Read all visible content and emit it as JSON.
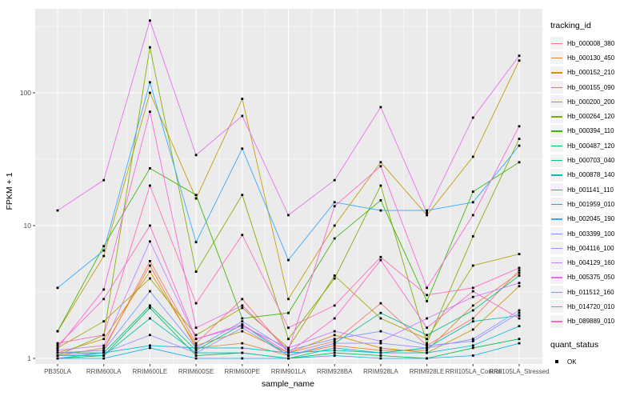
{
  "chart_data": {
    "type": "line",
    "title": "",
    "xlabel": "sample_name",
    "ylabel": "FPKM + 1",
    "y_scale": "log10",
    "y_ticks": [
      1,
      10,
      100
    ],
    "ylim": [
      0.91,
      430
    ],
    "grid": "on",
    "panel_background": "#ebebeb",
    "gridline_color": "#ffffff",
    "marker": "black-square",
    "legend_position": "right",
    "legend": {
      "title": "tracking_id"
    },
    "legend2": {
      "title": "quant_status",
      "items": [
        {
          "label": "OK"
        }
      ]
    },
    "categories": [
      "PB350LA",
      "RRIM600LA",
      "RRIM600LE",
      "RRIM600SE",
      "RRIM600PE",
      "RRIM901LA",
      "RRIM928BA",
      "RRIM928LA",
      "RRIM928LE",
      "RRII105LA_Control",
      "RRII105LA_Stressed"
    ],
    "series": [
      {
        "name": "Hb_000008_380",
        "color": "#F8766D",
        "values": [
          1.1,
          1.15,
          5.4,
          1.3,
          2.8,
          1.1,
          1.35,
          2.6,
          1.25,
          2.0,
          4.6
        ]
      },
      {
        "name": "Hb_000130_450",
        "color": "#EA8331",
        "values": [
          1.05,
          1.2,
          5.0,
          1.2,
          1.3,
          1.05,
          1.25,
          1.15,
          1.15,
          2.5,
          4.4
        ]
      },
      {
        "name": "Hb_000152_210",
        "color": "#D89000",
        "values": [
          1.1,
          1.4,
          4.5,
          1.25,
          1.6,
          1.1,
          1.5,
          1.2,
          1.1,
          1.65,
          3.5
        ]
      },
      {
        "name": "Hb_000155_090",
        "color": "#C09B00",
        "values": [
          1.6,
          5.9,
          100,
          16,
          90,
          2.8,
          10,
          30,
          12,
          33,
          175
        ]
      },
      {
        "name": "Hb_000200_200",
        "color": "#A3A500",
        "values": [
          1.2,
          1.9,
          4.0,
          1.5,
          2.4,
          1.2,
          4.2,
          2.0,
          1.4,
          5.0,
          6.1
        ]
      },
      {
        "name": "Hb_000264_120",
        "color": "#7CAE00",
        "values": [
          1.05,
          1.5,
          220,
          4.5,
          17,
          1.4,
          4.0,
          20,
          1.3,
          8.3,
          45
        ]
      },
      {
        "name": "Hb_000394_110",
        "color": "#39B600",
        "values": [
          1.6,
          7.0,
          27,
          17,
          2.0,
          2.2,
          8.0,
          15.5,
          2.7,
          18,
          30
        ]
      },
      {
        "name": "Hb_000487_120",
        "color": "#00BB4E",
        "values": [
          1.0,
          1.05,
          2.4,
          1.05,
          1.1,
          1.0,
          1.1,
          1.05,
          1.0,
          1.2,
          1.4
        ]
      },
      {
        "name": "Hb_000703_040",
        "color": "#00C08B",
        "values": [
          1.1,
          1.1,
          2.5,
          1.15,
          1.8,
          1.05,
          1.3,
          2.2,
          1.5,
          2.3,
          4.2
        ]
      },
      {
        "name": "Hb_000878_140",
        "color": "#00C0AF",
        "values": [
          1.05,
          1.05,
          2.0,
          1.1,
          1.1,
          1.0,
          1.2,
          1.1,
          1.2,
          1.9,
          2.1
        ]
      },
      {
        "name": "Hb_001141_110",
        "color": "#00BCD8",
        "values": [
          1.0,
          1.1,
          1.25,
          1.2,
          1.2,
          1.1,
          1.15,
          1.1,
          1.1,
          1.25,
          1.75
        ]
      },
      {
        "name": "Hb_001959_010",
        "color": "#00B0F6",
        "values": [
          1.0,
          1.0,
          1.2,
          1.0,
          1.0,
          1.0,
          1.05,
          1.0,
          1.0,
          1.05,
          1.3
        ]
      },
      {
        "name": "Hb_002045_190",
        "color": "#2FA8FF",
        "values": [
          3.4,
          6.5,
          120,
          7.5,
          38,
          5.5,
          15,
          13,
          13,
          15,
          40
        ]
      },
      {
        "name": "Hb_003399_100",
        "color": "#7C96FF",
        "values": [
          1.1,
          1.15,
          3.2,
          1.2,
          1.9,
          1.15,
          1.4,
          1.6,
          1.25,
          1.35,
          2.2
        ]
      },
      {
        "name": "Hb_004116_100",
        "color": "#9590FF",
        "values": [
          1.05,
          1.1,
          1.5,
          1.1,
          1.7,
          1.05,
          1.3,
          1.3,
          1.2,
          1.4,
          2.3
        ]
      },
      {
        "name": "Hb_004129_160",
        "color": "#C77CFF",
        "values": [
          1.15,
          1.25,
          7.6,
          1.4,
          1.75,
          1.2,
          1.6,
          1.35,
          2.0,
          2.9,
          3.7
        ]
      },
      {
        "name": "Hb_005375_050",
        "color": "#E76BF3",
        "values": [
          13,
          22,
          350,
          34,
          67,
          12,
          22,
          78,
          12.5,
          65,
          190
        ]
      },
      {
        "name": "Hb_011512_160",
        "color": "#FA62DB",
        "values": [
          1.2,
          3.3,
          72,
          1.7,
          2.5,
          1.15,
          14,
          28,
          3.4,
          12,
          56
        ]
      },
      {
        "name": "Hb_014720_010",
        "color": "#FF61CC",
        "values": [
          1.25,
          2.8,
          10,
          1.4,
          1.8,
          1.1,
          2.0,
          5.5,
          1.7,
          3.2,
          2.0
        ]
      },
      {
        "name": "Hb_089889_010",
        "color": "#FF67BC",
        "values": [
          1.3,
          1.5,
          20,
          2.6,
          8.5,
          1.7,
          2.5,
          5.8,
          3.0,
          3.4,
          4.8
        ]
      }
    ]
  }
}
